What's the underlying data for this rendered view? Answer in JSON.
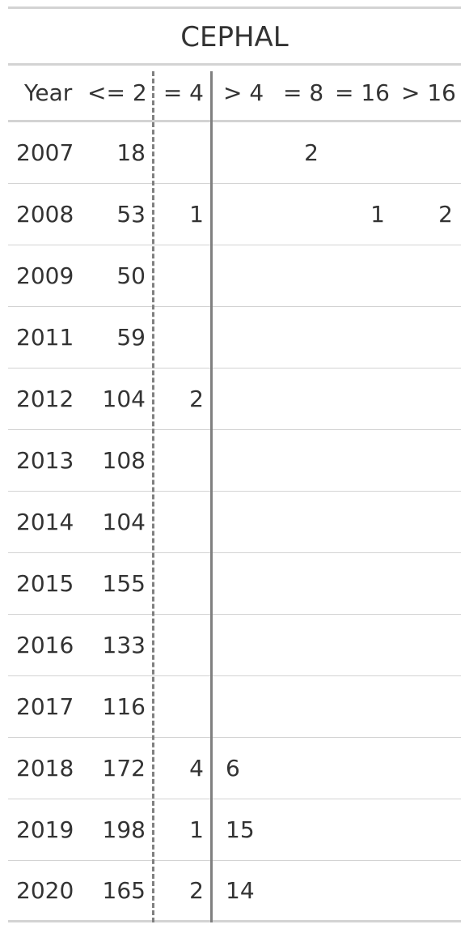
{
  "title": "CEPHAL",
  "headers": {
    "year": "Year",
    "le2": "<= 2",
    "eq4": "= 4",
    "gt4": "> 4",
    "eq8": "= 8",
    "eq16": "= 16",
    "gt16": "> 16"
  },
  "rows": [
    {
      "year": "2007",
      "le2": "18",
      "eq4": "",
      "gt4": "",
      "eq8": "2",
      "eq16": "",
      "gt16": ""
    },
    {
      "year": "2008",
      "le2": "53",
      "eq4": "1",
      "gt4": "",
      "eq8": "",
      "eq16": "1",
      "gt16": "2"
    },
    {
      "year": "2009",
      "le2": "50",
      "eq4": "",
      "gt4": "",
      "eq8": "",
      "eq16": "",
      "gt16": ""
    },
    {
      "year": "2011",
      "le2": "59",
      "eq4": "",
      "gt4": "",
      "eq8": "",
      "eq16": "",
      "gt16": ""
    },
    {
      "year": "2012",
      "le2": "104",
      "eq4": "2",
      "gt4": "",
      "eq8": "",
      "eq16": "",
      "gt16": ""
    },
    {
      "year": "2013",
      "le2": "108",
      "eq4": "",
      "gt4": "",
      "eq8": "",
      "eq16": "",
      "gt16": ""
    },
    {
      "year": "2014",
      "le2": "104",
      "eq4": "",
      "gt4": "",
      "eq8": "",
      "eq16": "",
      "gt16": ""
    },
    {
      "year": "2015",
      "le2": "155",
      "eq4": "",
      "gt4": "",
      "eq8": "",
      "eq16": "",
      "gt16": ""
    },
    {
      "year": "2016",
      "le2": "133",
      "eq4": "",
      "gt4": "",
      "eq8": "",
      "eq16": "",
      "gt16": ""
    },
    {
      "year": "2017",
      "le2": "116",
      "eq4": "",
      "gt4": "",
      "eq8": "",
      "eq16": "",
      "gt16": ""
    },
    {
      "year": "2018",
      "le2": "172",
      "eq4": "4",
      "gt4": "6",
      "eq8": "",
      "eq16": "",
      "gt16": ""
    },
    {
      "year": "2019",
      "le2": "198",
      "eq4": "1",
      "gt4": "15",
      "eq8": "",
      "eq16": "",
      "gt16": ""
    },
    {
      "year": "2020",
      "le2": "165",
      "eq4": "2",
      "gt4": "14",
      "eq8": "",
      "eq16": "",
      "gt16": ""
    }
  ]
}
